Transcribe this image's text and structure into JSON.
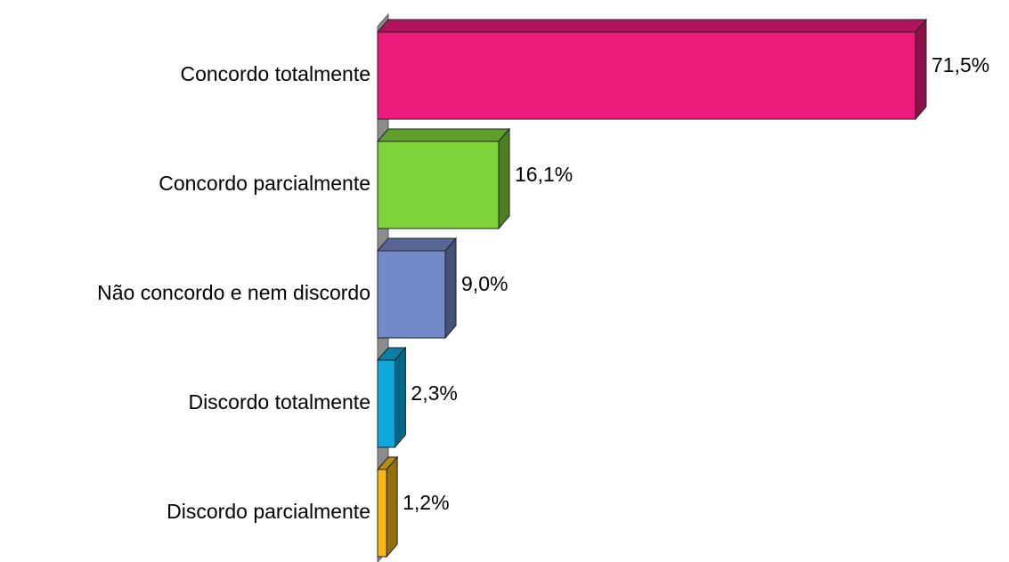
{
  "chart_data": {
    "type": "bar3d-horizontal",
    "categories": [
      "Concordo totalmente",
      "Concordo parcialmente",
      "Não concordo e nem discordo",
      "Discordo totalmente",
      "Discordo parcialmente"
    ],
    "values": [
      71.5,
      16.1,
      9.0,
      2.3,
      1.2
    ],
    "value_labels": [
      "71,5%",
      "16,1%",
      "9,0%",
      "2,3%",
      "1,2%"
    ],
    "colors": [
      "#ec1a7b",
      "#80d43b",
      "#7389c8",
      "#0fa9dc",
      "#f9b90e"
    ]
  }
}
